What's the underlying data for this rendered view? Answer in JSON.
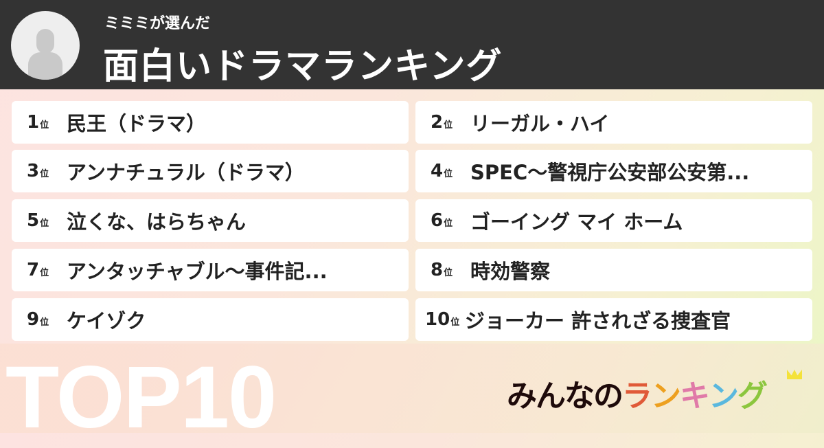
{
  "header": {
    "subtitle": "ミミミが選んだ",
    "title": "面白いドラマランキング"
  },
  "rank_suffix": "位",
  "items": [
    {
      "rank": "1",
      "name": "民王（ドラマ）"
    },
    {
      "rank": "2",
      "name": "リーガル・ハイ"
    },
    {
      "rank": "3",
      "name": "アンナチュラル（ドラマ）"
    },
    {
      "rank": "4",
      "name": "SPEC～警視庁公安部公安第..."
    },
    {
      "rank": "5",
      "name": "泣くな、はらちゃん"
    },
    {
      "rank": "6",
      "name": "ゴーイング マイ ホーム"
    },
    {
      "rank": "7",
      "name": "アンタッチャブル～事件記..."
    },
    {
      "rank": "8",
      "name": "時効警察"
    },
    {
      "rank": "9",
      "name": "ケイゾク"
    },
    {
      "rank": "10",
      "name": "ジョーカー 許されざる捜査官"
    }
  ],
  "badge": "TOP10",
  "logo": {
    "text": "みんなのランキング",
    "parts": [
      {
        "t": "みんなの",
        "color": "#1e0a0a"
      },
      {
        "t": "ラ",
        "color": "#e05a38"
      },
      {
        "t": "ン",
        "color": "#eda020"
      },
      {
        "t": "キ",
        "color": "#e07aa8"
      },
      {
        "t": "ン",
        "color": "#5ab8de"
      },
      {
        "t": "グ",
        "color": "#8cc63e"
      }
    ]
  }
}
